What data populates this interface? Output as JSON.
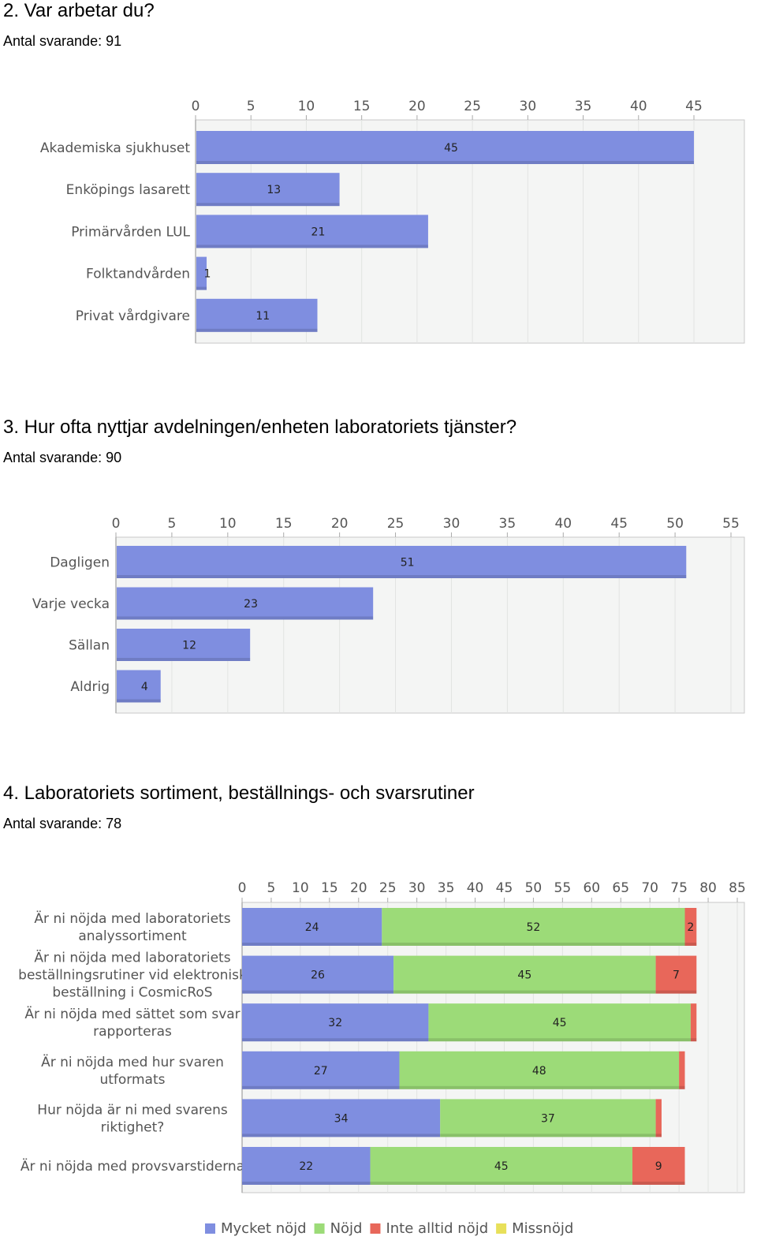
{
  "questions": [
    {
      "title": "2. Var arbetar du?",
      "respondents": "Antal svarande: 91",
      "chart_data": {
        "type": "bar",
        "orientation": "horizontal",
        "categories": [
          "Akademiska sjukhuset",
          "Enköpings lasarett",
          "Primärvården LUL",
          "Folktandvården",
          "Privat vårdgivare"
        ],
        "values": [
          45,
          13,
          21,
          1,
          11
        ],
        "xlim": [
          0,
          45
        ],
        "ticks": [
          0,
          5,
          10,
          15,
          20,
          25,
          30,
          35,
          40,
          45
        ],
        "axis_position": "top",
        "grid": true,
        "colors": {
          "bar": "#7f8ee0"
        }
      }
    },
    {
      "title": "3. Hur ofta nyttjar avdelningen/enheten laboratoriets tjänster?",
      "respondents": "Antal svarande: 90",
      "chart_data": {
        "type": "bar",
        "orientation": "horizontal",
        "categories": [
          "Dagligen",
          "Varje vecka",
          "Sällan",
          "Aldrig"
        ],
        "values": [
          51,
          23,
          12,
          4
        ],
        "xlim": [
          0,
          55
        ],
        "ticks": [
          0,
          5,
          10,
          15,
          20,
          25,
          30,
          35,
          40,
          45,
          50,
          55
        ],
        "axis_position": "top",
        "grid": true,
        "colors": {
          "bar": "#7f8ee0"
        }
      }
    },
    {
      "title": "4. Laboratoriets sortiment, beställnings- och svarsrutiner",
      "respondents": "Antal svarande: 78",
      "chart_data": {
        "type": "bar",
        "orientation": "horizontal",
        "stacked": true,
        "categories": [
          [
            "Är ni nöjda med laboratoriets",
            "analyssortiment"
          ],
          [
            "Är ni nöjda med laboratoriets",
            "beställningsrutiner vid elektronisk",
            "beställning i CosmicRoS"
          ],
          [
            "Är ni nöjda med sättet som svar",
            "rapporteras"
          ],
          [
            "Är ni nöjda med hur svaren",
            "utformats"
          ],
          [
            "Hur nöjda är ni med svarens",
            "riktighet?"
          ],
          [
            "Är ni nöjda med provsvarstiderna"
          ]
        ],
        "series": [
          {
            "name": "Mycket nöjd",
            "values": [
              24,
              26,
              32,
              27,
              34,
              22
            ],
            "color": "#7f8ee0"
          },
          {
            "name": "Nöjd",
            "values": [
              52,
              45,
              45,
              48,
              37,
              45
            ],
            "color": "#9cdb78"
          },
          {
            "name": "Inte alltid nöjd",
            "values": [
              2,
              7,
              1,
              1,
              1,
              9
            ],
            "color": "#e8675a"
          },
          {
            "name": "Missnöjd",
            "values": [
              0,
              0,
              0,
              0,
              0,
              0
            ],
            "color": "#e8e05a"
          }
        ],
        "value_labels": [
          [
            "24",
            "52",
            "2",
            ""
          ],
          [
            "26",
            "45",
            "7",
            ""
          ],
          [
            "32",
            "45",
            "",
            ""
          ],
          [
            "27",
            "48",
            "",
            ""
          ],
          [
            "34",
            "37",
            "",
            ""
          ],
          [
            "22",
            "45",
            "9",
            ""
          ]
        ],
        "xlim": [
          0,
          85
        ],
        "ticks": [
          0,
          5,
          10,
          15,
          20,
          25,
          30,
          35,
          40,
          45,
          50,
          55,
          60,
          65,
          70,
          75,
          80,
          85
        ],
        "axis_position": "top",
        "grid": true,
        "legend": "bottom"
      }
    }
  ]
}
